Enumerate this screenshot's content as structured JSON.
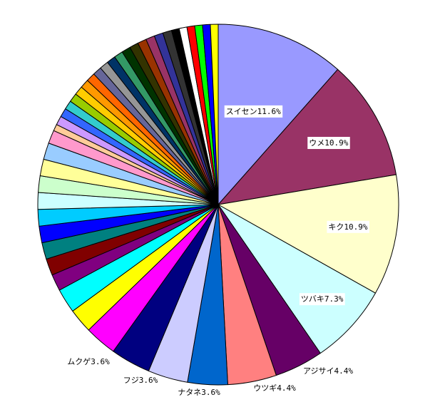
{
  "chart_data": {
    "type": "pie",
    "start_angle_deg": 0,
    "direction": "clockwise",
    "slices": [
      {
        "label": "スイセン11.6%",
        "value": 11.6,
        "color": "#9999ff",
        "show_label": true
      },
      {
        "label": "ウメ10.9%",
        "value": 10.9,
        "color": "#993366",
        "show_label": true
      },
      {
        "label": "キク10.9%",
        "value": 10.9,
        "color": "#ffffcc",
        "show_label": true
      },
      {
        "label": "ツバキ7.3%",
        "value": 7.3,
        "color": "#ccffff",
        "show_label": true
      },
      {
        "label": "アジサイ4.4%",
        "value": 4.4,
        "color": "#660066",
        "show_label": true
      },
      {
        "label": "ウツギ4.4%",
        "value": 4.4,
        "color": "#ff8080",
        "show_label": true
      },
      {
        "label": "ナタネ3.6%",
        "value": 3.6,
        "color": "#0066cc",
        "show_label": true
      },
      {
        "label": "フジ3.6%",
        "value": 3.6,
        "color": "#ccccff",
        "show_label": true
      },
      {
        "label": "ムクゲ3.6%",
        "value": 3.6,
        "color": "#000080",
        "show_label": true
      },
      {
        "label": "",
        "value": 2.9,
        "color": "#ff00ff",
        "show_label": false
      },
      {
        "label": "",
        "value": 2.2,
        "color": "#ffff00",
        "show_label": false
      },
      {
        "label": "",
        "value": 2.2,
        "color": "#00ffff",
        "show_label": false
      },
      {
        "label": "",
        "value": 1.5,
        "color": "#800080",
        "show_label": false
      },
      {
        "label": "",
        "value": 1.5,
        "color": "#800000",
        "show_label": false
      },
      {
        "label": "",
        "value": 1.5,
        "color": "#008080",
        "show_label": false
      },
      {
        "label": "",
        "value": 1.5,
        "color": "#0000ff",
        "show_label": false
      },
      {
        "label": "",
        "value": 1.5,
        "color": "#00ccff",
        "show_label": false
      },
      {
        "label": "",
        "value": 1.5,
        "color": "#ccffff",
        "show_label": false
      },
      {
        "label": "",
        "value": 1.5,
        "color": "#ccffcc",
        "show_label": false
      },
      {
        "label": "",
        "value": 1.5,
        "color": "#ffff99",
        "show_label": false
      },
      {
        "label": "",
        "value": 1.5,
        "color": "#99ccff",
        "show_label": false
      },
      {
        "label": "",
        "value": 1.2,
        "color": "#ff99cc",
        "show_label": false
      },
      {
        "label": "",
        "value": 0.6,
        "color": "#ffcc99",
        "show_label": false
      },
      {
        "label": "",
        "value": 0.8,
        "color": "#cc99ff",
        "show_label": false
      },
      {
        "label": "",
        "value": 0.8,
        "color": "#3366ff",
        "show_label": false
      },
      {
        "label": "",
        "value": 0.8,
        "color": "#33cccc",
        "show_label": false
      },
      {
        "label": "",
        "value": 0.8,
        "color": "#99cc00",
        "show_label": false
      },
      {
        "label": "",
        "value": 0.8,
        "color": "#ffcc00",
        "show_label": false
      },
      {
        "label": "",
        "value": 0.8,
        "color": "#ff9900",
        "show_label": false
      },
      {
        "label": "",
        "value": 0.8,
        "color": "#ff6600",
        "show_label": false
      },
      {
        "label": "",
        "value": 0.8,
        "color": "#666699",
        "show_label": false
      },
      {
        "label": "",
        "value": 0.8,
        "color": "#969696",
        "show_label": false
      },
      {
        "label": "",
        "value": 0.8,
        "color": "#003366",
        "show_label": false
      },
      {
        "label": "",
        "value": 0.8,
        "color": "#339966",
        "show_label": false
      },
      {
        "label": "",
        "value": 0.8,
        "color": "#003300",
        "show_label": false
      },
      {
        "label": "",
        "value": 0.8,
        "color": "#333300",
        "show_label": false
      },
      {
        "label": "",
        "value": 0.8,
        "color": "#993300",
        "show_label": false
      },
      {
        "label": "",
        "value": 0.8,
        "color": "#993366",
        "show_label": false
      },
      {
        "label": "",
        "value": 0.8,
        "color": "#333399",
        "show_label": false
      },
      {
        "label": "",
        "value": 0.8,
        "color": "#333333",
        "show_label": false
      },
      {
        "label": "",
        "value": 0.7,
        "color": "#000000",
        "show_label": false
      },
      {
        "label": "",
        "value": 0.7,
        "color": "#ffffff",
        "show_label": false
      },
      {
        "label": "",
        "value": 0.7,
        "color": "#ff0000",
        "show_label": false
      },
      {
        "label": "",
        "value": 0.7,
        "color": "#00ff00",
        "show_label": false
      },
      {
        "label": "",
        "value": 0.7,
        "color": "#0000ff",
        "show_label": false
      },
      {
        "label": "",
        "value": 0.7,
        "color": "#ffff00",
        "show_label": false
      }
    ]
  }
}
